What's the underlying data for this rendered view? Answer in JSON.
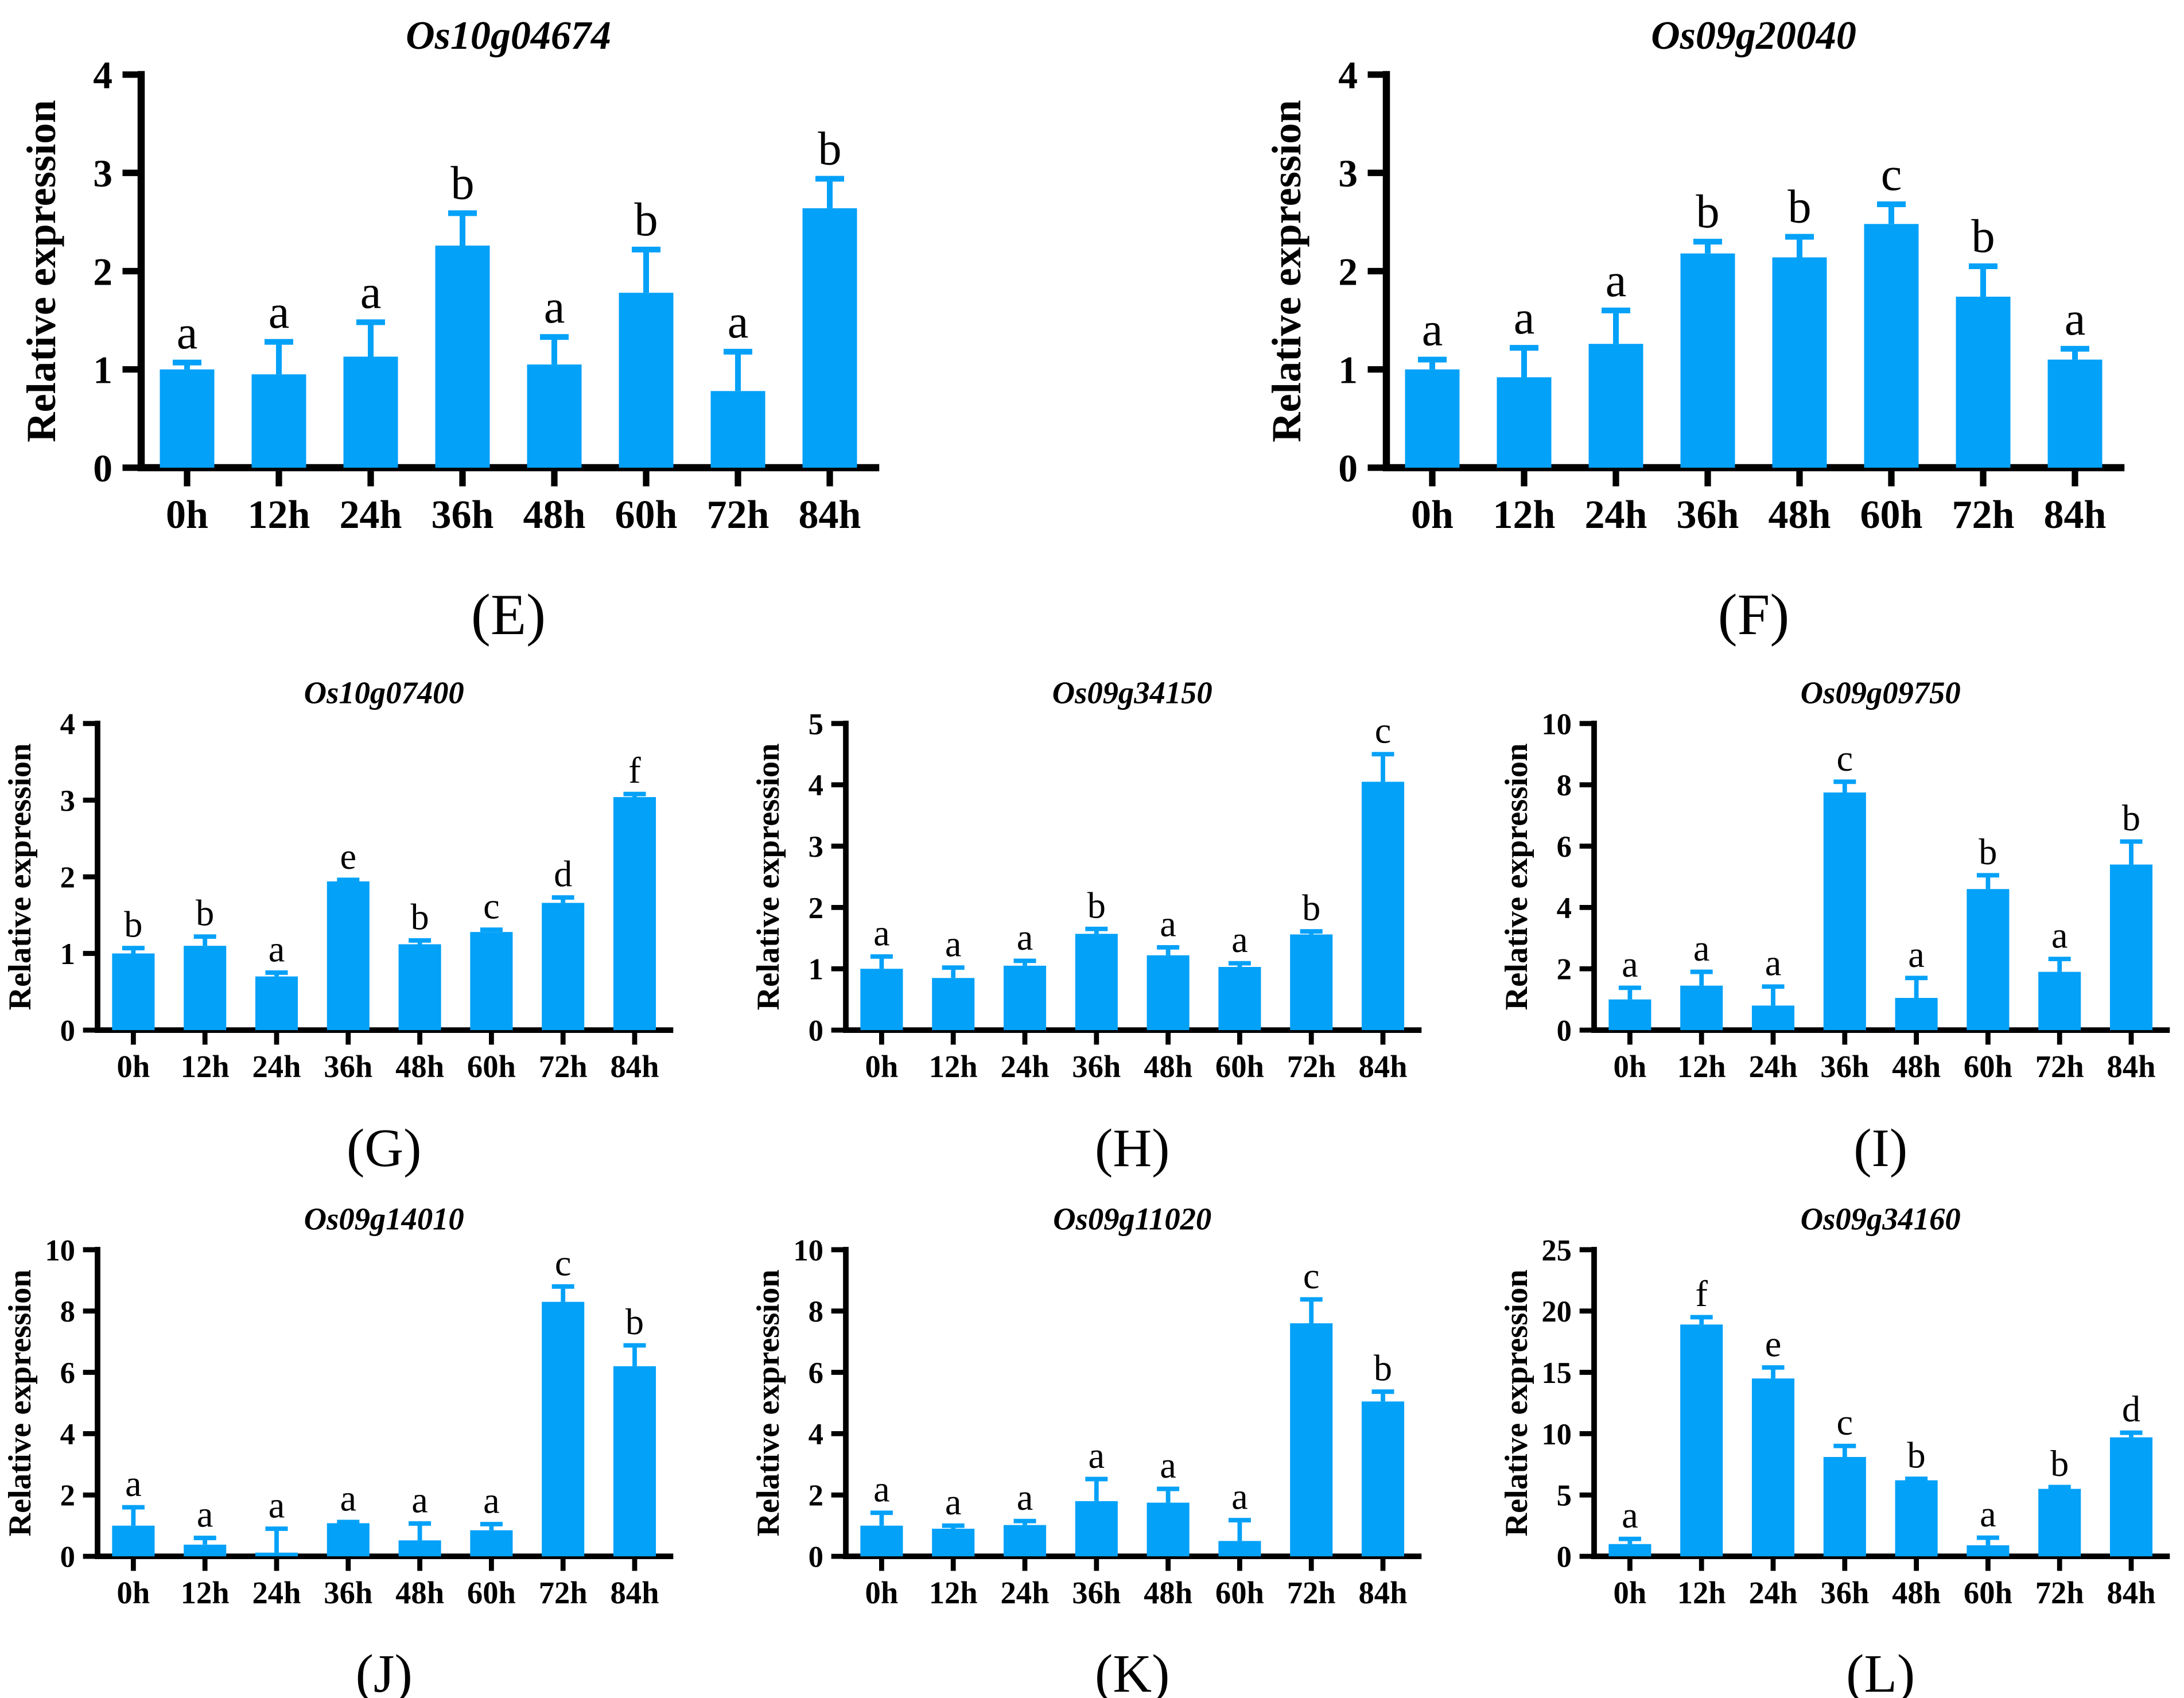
{
  "figure": {
    "background": "#ffffff",
    "bar_color": "#04A1F8",
    "axis_color": "#000000",
    "text_color": "#000000",
    "ylabel": "Relative expression",
    "categories": [
      "0h",
      "12h",
      "24h",
      "36h",
      "48h",
      "60h",
      "72h",
      "84h"
    ],
    "layout_rows": [
      [
        "E",
        "F"
      ],
      [
        "G",
        "H",
        "I"
      ],
      [
        "J",
        "K",
        "L"
      ]
    ]
  },
  "chart_data": [
    {
      "id": "E",
      "type": "bar",
      "panel_label": "(E)",
      "title": "Os10g04674",
      "xlabel": "",
      "ylabel": "Relative expression",
      "ylim": [
        0,
        4
      ],
      "yticks": [
        0,
        1,
        2,
        3,
        4
      ],
      "grid": false,
      "categories": [
        "0h",
        "12h",
        "24h",
        "36h",
        "48h",
        "60h",
        "72h",
        "84h"
      ],
      "values": [
        1.0,
        0.95,
        1.13,
        2.26,
        1.05,
        1.78,
        0.78,
        2.64
      ],
      "errors": [
        0.07,
        0.33,
        0.35,
        0.33,
        0.28,
        0.44,
        0.4,
        0.3
      ],
      "sig_letters": [
        "a",
        "a",
        "a",
        "b",
        "a",
        "b",
        "a",
        "b"
      ]
    },
    {
      "id": "F",
      "type": "bar",
      "panel_label": "(F)",
      "title": "Os09g20040",
      "xlabel": "",
      "ylabel": "Relative expression",
      "ylim": [
        0,
        4
      ],
      "yticks": [
        0,
        1,
        2,
        3,
        4
      ],
      "grid": false,
      "categories": [
        "0h",
        "12h",
        "24h",
        "36h",
        "48h",
        "60h",
        "72h",
        "84h"
      ],
      "values": [
        1.0,
        0.92,
        1.26,
        2.18,
        2.14,
        2.48,
        1.74,
        1.1
      ],
      "errors": [
        0.1,
        0.3,
        0.34,
        0.12,
        0.21,
        0.2,
        0.31,
        0.11
      ],
      "sig_letters": [
        "a",
        "a",
        "a",
        "b",
        "b",
        "c",
        "b",
        "a"
      ]
    },
    {
      "id": "G",
      "type": "bar",
      "panel_label": "(G)",
      "title": "Os10g07400",
      "xlabel": "",
      "ylabel": "Relative expression",
      "ylim": [
        0,
        4
      ],
      "yticks": [
        0,
        1,
        2,
        3,
        4
      ],
      "grid": false,
      "categories": [
        "0h",
        "12h",
        "24h",
        "36h",
        "48h",
        "60h",
        "72h",
        "84h"
      ],
      "values": [
        1.0,
        1.1,
        0.7,
        1.94,
        1.12,
        1.28,
        1.66,
        3.04
      ],
      "errors": [
        0.07,
        0.12,
        0.05,
        0.02,
        0.05,
        0.03,
        0.07,
        0.04
      ],
      "sig_letters": [
        "b",
        "b",
        "a",
        "e",
        "b",
        "c",
        "d",
        "f"
      ]
    },
    {
      "id": "H",
      "type": "bar",
      "panel_label": "(H)",
      "title": "Os09g34150",
      "xlabel": "",
      "ylabel": "Relative expression",
      "ylim": [
        0,
        5
      ],
      "yticks": [
        0,
        1,
        2,
        3,
        4,
        5
      ],
      "grid": false,
      "categories": [
        "0h",
        "12h",
        "24h",
        "36h",
        "48h",
        "60h",
        "72h",
        "84h"
      ],
      "values": [
        1.0,
        0.85,
        1.05,
        1.57,
        1.22,
        1.03,
        1.56,
        4.05
      ],
      "errors": [
        0.2,
        0.17,
        0.08,
        0.08,
        0.13,
        0.06,
        0.05,
        0.45
      ],
      "sig_letters": [
        "a",
        "a",
        "a",
        "b",
        "a",
        "a",
        "b",
        "c"
      ]
    },
    {
      "id": "I",
      "type": "bar",
      "panel_label": "(I)",
      "title": "Os09g09750",
      "xlabel": "",
      "ylabel": "Relative expression",
      "ylim": [
        0,
        10
      ],
      "yticks": [
        0,
        2,
        4,
        6,
        8,
        10
      ],
      "grid": false,
      "categories": [
        "0h",
        "12h",
        "24h",
        "36h",
        "48h",
        "60h",
        "72h",
        "84h"
      ],
      "values": [
        1.0,
        1.45,
        0.8,
        7.75,
        1.05,
        4.6,
        1.9,
        5.4
      ],
      "errors": [
        0.38,
        0.45,
        0.62,
        0.35,
        0.65,
        0.45,
        0.42,
        0.75
      ],
      "sig_letters": [
        "a",
        "a",
        "a",
        "c",
        "a",
        "b",
        "a",
        "b"
      ]
    },
    {
      "id": "J",
      "type": "bar",
      "panel_label": "(J)",
      "title": "Os09g14010",
      "xlabel": "",
      "ylabel": "Relative expression",
      "ylim": [
        0,
        10
      ],
      "yticks": [
        0,
        2,
        4,
        6,
        8,
        10
      ],
      "grid": false,
      "categories": [
        "0h",
        "12h",
        "24h",
        "36h",
        "48h",
        "60h",
        "72h",
        "84h"
      ],
      "values": [
        1.0,
        0.38,
        0.12,
        1.08,
        0.52,
        0.85,
        8.3,
        6.2
      ],
      "errors": [
        0.6,
        0.22,
        0.78,
        0.04,
        0.55,
        0.2,
        0.5,
        0.68
      ],
      "sig_letters": [
        "a",
        "a",
        "a",
        "a",
        "a",
        "a",
        "c",
        "b"
      ]
    },
    {
      "id": "K",
      "type": "bar",
      "panel_label": "(K)",
      "title": "Os09g11020",
      "xlabel": "",
      "ylabel": "Relative expression",
      "ylim": [
        0,
        10
      ],
      "yticks": [
        0,
        2,
        4,
        6,
        8,
        10
      ],
      "grid": false,
      "categories": [
        "0h",
        "12h",
        "24h",
        "36h",
        "48h",
        "60h",
        "72h",
        "84h"
      ],
      "values": [
        1.0,
        0.9,
        1.02,
        1.8,
        1.75,
        0.5,
        7.6,
        5.05
      ],
      "errors": [
        0.42,
        0.1,
        0.13,
        0.72,
        0.45,
        0.68,
        0.78,
        0.32
      ],
      "sig_letters": [
        "a",
        "a",
        "a",
        "a",
        "a",
        "a",
        "c",
        "b"
      ]
    },
    {
      "id": "L",
      "type": "bar",
      "panel_label": "(L)",
      "title": "Os09g34160",
      "xlabel": "",
      "ylabel": "Relative expression",
      "ylim": [
        0,
        25
      ],
      "yticks": [
        0,
        5,
        10,
        15,
        20,
        25
      ],
      "grid": false,
      "categories": [
        "0h",
        "12h",
        "24h",
        "36h",
        "48h",
        "60h",
        "72h",
        "84h"
      ],
      "values": [
        1.0,
        18.9,
        14.5,
        8.1,
        6.2,
        0.9,
        5.5,
        9.7
      ],
      "errors": [
        0.42,
        0.6,
        0.9,
        0.9,
        0.12,
        0.62,
        0.15,
        0.38
      ],
      "sig_letters": [
        "a",
        "f",
        "e",
        "c",
        "b",
        "a",
        "b",
        "d"
      ]
    }
  ]
}
